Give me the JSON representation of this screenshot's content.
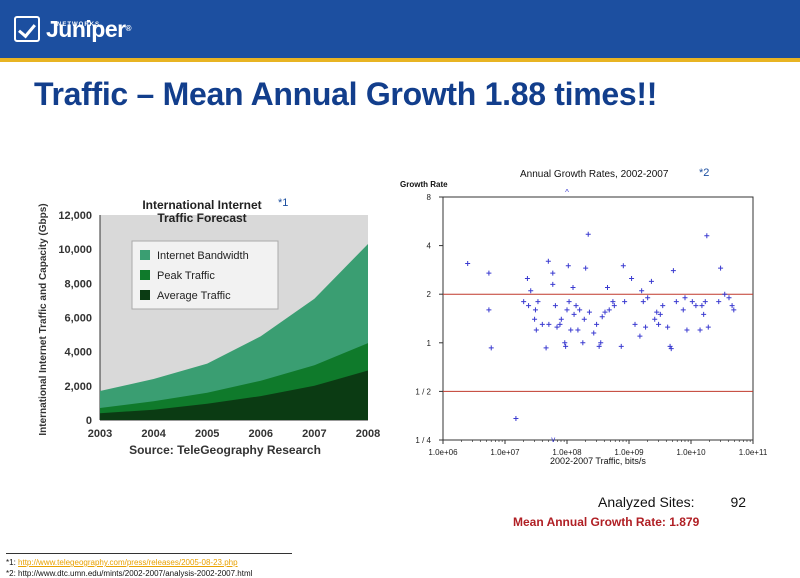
{
  "brand": {
    "name": "Juniper",
    "sub": "NETWORKS",
    "reg": "®"
  },
  "title": "Traffic – Mean Annual Growth 1.88 times!!",
  "colors": {
    "header": "#1c4fa0",
    "accent": "#e8b423",
    "title": "#123e8c",
    "highlight": "#b01f24"
  },
  "chart_data": [
    {
      "type": "area",
      "title": "International Internet Traffic Forecast",
      "footnote_mark": "*1",
      "xlabel": "Source: TeleGeography Research",
      "ylabel": "International Internet Traffic and Capacity (Gbps)",
      "ylim": [
        0,
        12000
      ],
      "yticks": [
        "0",
        "2,000",
        "4,000",
        "6,000",
        "8,000",
        "10,000",
        "12,000"
      ],
      "categories": [
        "2003",
        "2004",
        "2005",
        "2006",
        "2007",
        "2008"
      ],
      "legend_position": "top-left",
      "series": [
        {
          "name": "Internet Bandwidth",
          "color": "#3a9e72",
          "values": [
            1700,
            2400,
            3300,
            4900,
            7100,
            10300
          ]
        },
        {
          "name": "Peak Traffic",
          "color": "#0f7a2b",
          "values": [
            700,
            1100,
            1600,
            2300,
            3200,
            4500
          ]
        },
        {
          "name": "Average Traffic",
          "color": "#0b3b13",
          "values": [
            400,
            600,
            950,
            1400,
            2000,
            2900
          ]
        }
      ]
    },
    {
      "type": "scatter",
      "title": "Annual Growth Rates, 2002-2007",
      "footnote_mark": "*2",
      "xlabel": "2002-2007 Traffic, bits/s",
      "ylabel": "Growth Rate",
      "x_scale": "log",
      "y_scale": "log",
      "xlim": [
        1000000.0,
        100000000000.0
      ],
      "ylim": [
        0.25,
        8
      ],
      "xticks": [
        {
          "value": 1000000.0,
          "label": "1.0e+06"
        },
        {
          "value": 10000000.0,
          "label": "1.0e+07"
        },
        {
          "value": 100000000.0,
          "label": "1.0e+08"
        },
        {
          "value": 1000000000.0,
          "label": "1.0e+09"
        },
        {
          "value": 10000000000.0,
          "label": "1.0e+10"
        },
        {
          "value": 100000000000.0,
          "label": "1.0e+11"
        }
      ],
      "yticks": [
        {
          "value": 0.25,
          "label": "1 / 4"
        },
        {
          "value": 0.5,
          "label": "1 / 2"
        },
        {
          "value": 1,
          "label": "1"
        },
        {
          "value": 2,
          "label": "2"
        },
        {
          "value": 4,
          "label": "4"
        },
        {
          "value": 8,
          "label": "8"
        }
      ],
      "reference_lines": [
        2,
        0.5
      ],
      "marker": "+",
      "points": [
        {
          "x": 2500000.0,
          "y": 3.1
        },
        {
          "x": 5500000.0,
          "y": 2.7
        },
        {
          "x": 5500000.0,
          "y": 1.6
        },
        {
          "x": 6000000.0,
          "y": 0.93
        },
        {
          "x": 15000000.0,
          "y": 0.34
        },
        {
          "x": 20000000.0,
          "y": 1.8
        },
        {
          "x": 23000000.0,
          "y": 2.5
        },
        {
          "x": 24000000.0,
          "y": 1.7
        },
        {
          "x": 26000000.0,
          "y": 2.1
        },
        {
          "x": 30000000.0,
          "y": 1.4
        },
        {
          "x": 31000000.0,
          "y": 1.6
        },
        {
          "x": 32000000.0,
          "y": 1.2
        },
        {
          "x": 34000000.0,
          "y": 1.8
        },
        {
          "x": 40000000.0,
          "y": 1.3
        },
        {
          "x": 46000000.0,
          "y": 0.93
        },
        {
          "x": 50000000.0,
          "y": 3.2
        },
        {
          "x": 51000000.0,
          "y": 1.3
        },
        {
          "x": 59000000.0,
          "y": 2.7
        },
        {
          "x": 59000000.0,
          "y": 2.3
        },
        {
          "x": 65000000.0,
          "y": 1.7
        },
        {
          "x": 69000000.0,
          "y": 1.25
        },
        {
          "x": 77000000.0,
          "y": 1.3
        },
        {
          "x": 81000000.0,
          "y": 1.4
        },
        {
          "x": 92000000.0,
          "y": 1.0
        },
        {
          "x": 95000000.0,
          "y": 0.95
        },
        {
          "x": 100000000.0,
          "y": 1.6
        },
        {
          "x": 105000000.0,
          "y": 3.0
        },
        {
          "x": 108000000.0,
          "y": 1.8
        },
        {
          "x": 115000000.0,
          "y": 1.2
        },
        {
          "x": 125000000.0,
          "y": 2.2
        },
        {
          "x": 130000000.0,
          "y": 1.5
        },
        {
          "x": 140000000.0,
          "y": 1.7
        },
        {
          "x": 150000000.0,
          "y": 1.2
        },
        {
          "x": 160000000.0,
          "y": 1.6
        },
        {
          "x": 180000000.0,
          "y": 1.0
        },
        {
          "x": 190000000.0,
          "y": 1.4
        },
        {
          "x": 200000000.0,
          "y": 2.9
        },
        {
          "x": 220000000.0,
          "y": 4.7
        },
        {
          "x": 230000000.0,
          "y": 1.55
        },
        {
          "x": 270000000.0,
          "y": 1.15
        },
        {
          "x": 300000000.0,
          "y": 1.3
        },
        {
          "x": 330000000.0,
          "y": 0.95
        },
        {
          "x": 350000000.0,
          "y": 1.0
        },
        {
          "x": 370000000.0,
          "y": 1.45
        },
        {
          "x": 410000000.0,
          "y": 1.55
        },
        {
          "x": 450000000.0,
          "y": 2.2
        },
        {
          "x": 480000000.0,
          "y": 1.6
        },
        {
          "x": 550000000.0,
          "y": 1.8
        },
        {
          "x": 580000000.0,
          "y": 1.7
        },
        {
          "x": 750000000.0,
          "y": 0.95
        },
        {
          "x": 810000000.0,
          "y": 3.0
        },
        {
          "x": 850000000.0,
          "y": 1.8
        },
        {
          "x": 1100000000.0,
          "y": 2.5
        },
        {
          "x": 1250000000.0,
          "y": 1.3
        },
        {
          "x": 1500000000.0,
          "y": 1.1
        },
        {
          "x": 1600000000.0,
          "y": 2.1
        },
        {
          "x": 1700000000.0,
          "y": 1.8
        },
        {
          "x": 1850000000.0,
          "y": 1.25
        },
        {
          "x": 2000000000.0,
          "y": 1.9
        },
        {
          "x": 2300000000.0,
          "y": 2.4
        },
        {
          "x": 2600000000.0,
          "y": 1.4
        },
        {
          "x": 2800000000.0,
          "y": 1.55
        },
        {
          "x": 3000000000.0,
          "y": 1.3
        },
        {
          "x": 3200000000.0,
          "y": 1.5
        },
        {
          "x": 3500000000.0,
          "y": 1.7
        },
        {
          "x": 4200000000.0,
          "y": 1.25
        },
        {
          "x": 4600000000.0,
          "y": 0.95
        },
        {
          "x": 4800000000.0,
          "y": 0.92
        },
        {
          "x": 5200000000.0,
          "y": 2.8
        },
        {
          "x": 5800000000.0,
          "y": 1.8
        },
        {
          "x": 7500000000.0,
          "y": 1.6
        },
        {
          "x": 8000000000.0,
          "y": 1.9
        },
        {
          "x": 8600000000.0,
          "y": 1.2
        },
        {
          "x": 10500000000.0,
          "y": 1.8
        },
        {
          "x": 12000000000.0,
          "y": 1.7
        },
        {
          "x": 14000000000.0,
          "y": 1.2
        },
        {
          "x": 15000000000.0,
          "y": 1.7
        },
        {
          "x": 16000000000.0,
          "y": 1.5
        },
        {
          "x": 17000000000.0,
          "y": 1.8
        },
        {
          "x": 18000000000.0,
          "y": 4.6
        },
        {
          "x": 19000000000.0,
          "y": 1.25
        },
        {
          "x": 28000000000.0,
          "y": 1.8
        },
        {
          "x": 30000000000.0,
          "y": 2.9
        },
        {
          "x": 35000000000.0,
          "y": 2.0
        },
        {
          "x": 41000000000.0,
          "y": 1.9
        },
        {
          "x": 46000000000.0,
          "y": 1.7
        },
        {
          "x": 49000000000.0,
          "y": 1.6
        }
      ],
      "offscale_marks": [
        {
          "x": 100000000.0,
          "position": "top"
        },
        {
          "x": 60000000.0,
          "position": "bottom"
        }
      ]
    }
  ],
  "summary": {
    "sites_label": "Analyzed Sites:",
    "sites_value": "92",
    "growth_label": "Mean Annual Growth Rate: 1.879"
  },
  "footnotes": [
    {
      "mark": "*1:",
      "url": "http://www.telegeography.com/press/releases/2005-08-23.php"
    },
    {
      "mark": "*2:",
      "url": "http://www.dtc.umn.edu/mints/2002-2007/analysis-2002-2007.html"
    }
  ]
}
